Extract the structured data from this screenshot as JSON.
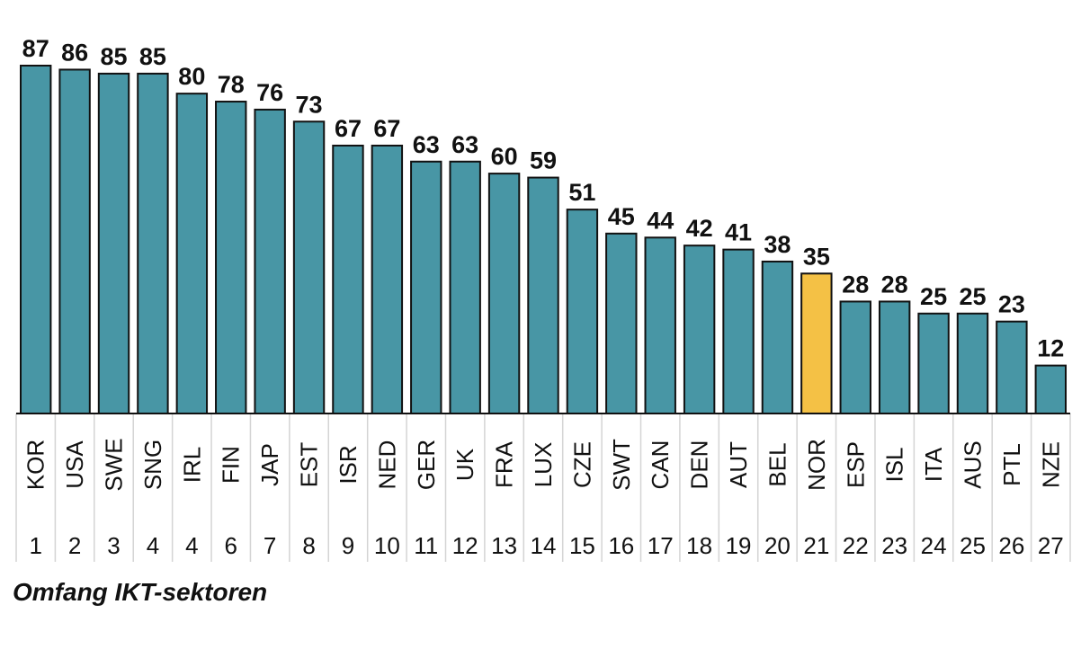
{
  "caption": "Omfang IKT-sektoren",
  "colors": {
    "bar": "#4896A5",
    "highlight": "#F4C145",
    "outline": "#111111",
    "grid": "#d4d4d4",
    "text": "#111111"
  },
  "chart_data": {
    "type": "bar",
    "title": "",
    "xlabel": "Omfang IKT-sektoren",
    "ylabel": "",
    "ylim": [
      0,
      87
    ],
    "highlight_category": "NOR",
    "categories": [
      "KOR",
      "USA",
      "SWE",
      "SNG",
      "IRL",
      "FIN",
      "JAP",
      "EST",
      "ISR",
      "NED",
      "GER",
      "UK",
      "FRA",
      "LUX",
      "CZE",
      "SWT",
      "CAN",
      "DEN",
      "AUT",
      "BEL",
      "NOR",
      "ESP",
      "ISL",
      "ITA",
      "AUS",
      "PTL",
      "NZE"
    ],
    "values": [
      87,
      86,
      85,
      85,
      80,
      78,
      76,
      73,
      67,
      67,
      63,
      63,
      60,
      59,
      51,
      45,
      44,
      42,
      41,
      38,
      35,
      28,
      28,
      25,
      25,
      23,
      12
    ],
    "ranks": [
      "1",
      "2",
      "3",
      "4",
      "4",
      "6",
      "7",
      "8",
      "9",
      "10",
      "11",
      "12",
      "13",
      "14",
      "15",
      "16",
      "17",
      "18",
      "19",
      "20",
      "21",
      "22",
      "23",
      "24",
      "25",
      "26",
      "27"
    ]
  }
}
